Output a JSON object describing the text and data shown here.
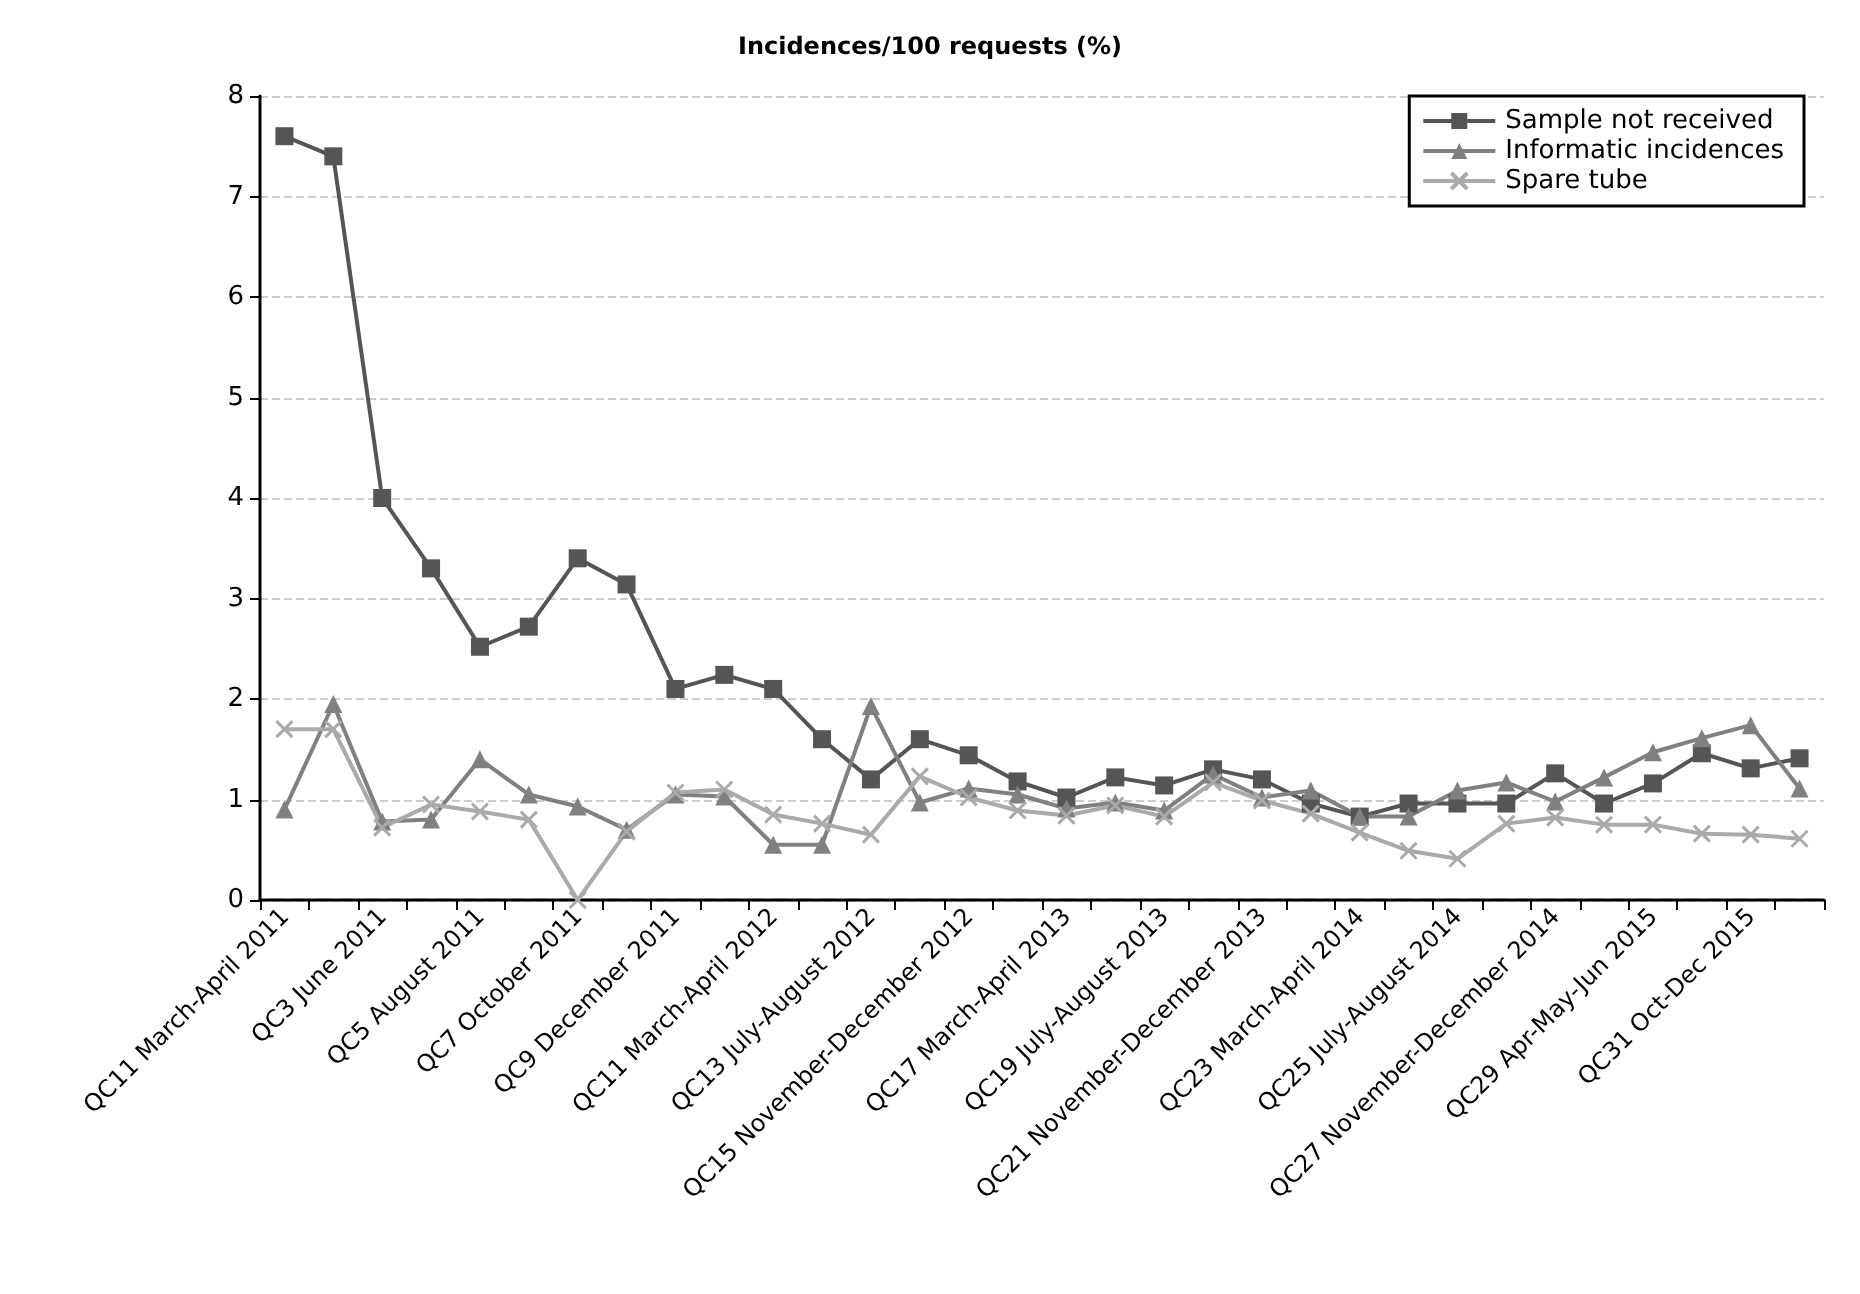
{
  "chart_data": {
    "type": "line",
    "title": "Incidences/100 requests (%)",
    "categories": [
      "QC11 March-April 2011",
      null,
      "QC3 June 2011",
      null,
      "QC5 August 2011",
      null,
      "QC7 October 2011",
      null,
      "QC9 December 2011",
      null,
      "QC11 March-April 2012",
      null,
      "QC13 July-August 2012",
      null,
      "QC15 November-December 2012",
      null,
      "QC17 March-April 2013",
      null,
      "QC19 July-August 2013",
      null,
      "QC21 November-December 2013",
      null,
      "QC23 March-April 2014",
      null,
      "QC25 July-August 2014",
      null,
      "QC27 November-December 2014",
      null,
      "QC29 Apr-May-Jun 2015",
      null,
      "QC31 Oct-Dec 2015",
      null
    ],
    "series": [
      {
        "name": "Sample not received",
        "color": "#555555",
        "marker": "square",
        "values": [
          7.6,
          7.4,
          4.0,
          3.3,
          2.52,
          2.72,
          3.4,
          3.14,
          2.1,
          2.24,
          2.1,
          1.6,
          1.2,
          1.6,
          1.44,
          1.18,
          1.02,
          1.22,
          1.14,
          1.3,
          1.2,
          0.96,
          0.83,
          0.96,
          0.96,
          0.96,
          1.26,
          0.96,
          1.16,
          1.46,
          1.31,
          1.41
        ]
      },
      {
        "name": "Informatic incidences",
        "color": "#808080",
        "marker": "triangle",
        "values": [
          0.9,
          1.95,
          0.78,
          0.8,
          1.4,
          1.05,
          0.93,
          0.7,
          1.05,
          1.03,
          0.55,
          0.55,
          1.93,
          0.97,
          1.11,
          1.05,
          0.91,
          0.97,
          0.89,
          1.25,
          1.02,
          1.09,
          0.83,
          0.83,
          1.09,
          1.17,
          0.98,
          1.22,
          1.47,
          1.61,
          1.74,
          1.11
        ]
      },
      {
        "name": "Spare tube",
        "color": "#aaaaaa",
        "marker": "cross",
        "values": [
          1.7,
          1.7,
          0.72,
          0.95,
          0.88,
          0.8,
          0.0,
          0.68,
          1.07,
          1.1,
          0.85,
          0.76,
          0.65,
          1.23,
          1.02,
          0.89,
          0.84,
          0.94,
          0.83,
          1.17,
          0.99,
          0.86,
          0.67,
          0.49,
          0.41,
          0.76,
          0.82,
          0.75,
          0.75,
          0.66,
          0.65,
          0.61
        ]
      }
    ],
    "ylim": [
      0,
      8
    ],
    "yticks": [
      0,
      1,
      2,
      3,
      4,
      5,
      6,
      7,
      8
    ],
    "grid": "y",
    "legend": "top right"
  }
}
